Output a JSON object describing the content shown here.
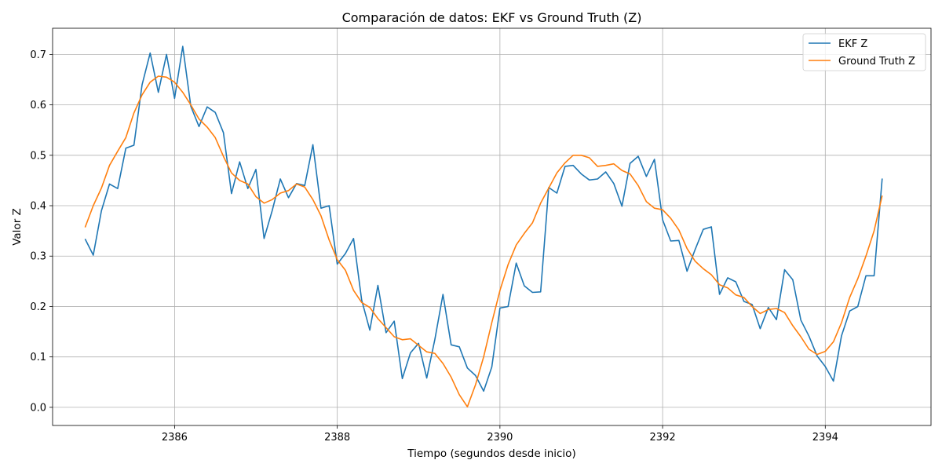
{
  "chart_data": {
    "type": "line",
    "title": "Comparación de datos: EKF vs Ground Truth (Z)",
    "xlabel": "Tiempo (segundos desde inicio)",
    "ylabel": "Valor Z",
    "xlim": [
      2384.5,
      2395.3
    ],
    "ylim": [
      -0.036,
      0.752
    ],
    "xticks": [
      2386,
      2388,
      2390,
      2392,
      2394
    ],
    "yticks": [
      0.0,
      0.1,
      0.2,
      0.3,
      0.4,
      0.5,
      0.6,
      0.7
    ],
    "grid": true,
    "legend_position": "top-right",
    "series": [
      {
        "name": "EKF Z",
        "color": "#1f77b4",
        "x": [
          2384.9,
          2385.0,
          2385.1,
          2385.2,
          2385.3,
          2385.4,
          2385.5,
          2385.6,
          2385.7,
          2385.8,
          2385.9,
          2386.0,
          2386.1,
          2386.2,
          2386.3,
          2386.4,
          2386.5,
          2386.6,
          2386.7,
          2386.8,
          2386.9,
          2387.0,
          2387.1,
          2387.2,
          2387.3,
          2387.4,
          2387.5,
          2387.6,
          2387.7,
          2387.8,
          2387.9,
          2388.0,
          2388.1,
          2388.2,
          2388.3,
          2388.4,
          2388.5,
          2388.6,
          2388.7,
          2388.8,
          2388.9,
          2389.0,
          2389.1,
          2389.2,
          2389.3,
          2389.4,
          2389.5,
          2389.6,
          2389.7,
          2389.8,
          2389.9,
          2390.0,
          2390.1,
          2390.2,
          2390.3,
          2390.4,
          2390.5,
          2390.6,
          2390.7,
          2390.8,
          2390.9,
          2391.0,
          2391.1,
          2391.2,
          2391.3,
          2391.4,
          2391.5,
          2391.6,
          2391.7,
          2391.8,
          2391.9,
          2392.0,
          2392.1,
          2392.2,
          2392.3,
          2392.4,
          2392.5,
          2392.6,
          2392.7,
          2392.8,
          2392.9,
          2393.0,
          2393.1,
          2393.2,
          2393.3,
          2393.4,
          2393.5,
          2393.6,
          2393.7,
          2393.8,
          2393.9,
          2394.0,
          2394.1,
          2394.2,
          2394.3,
          2394.4,
          2394.5,
          2394.6,
          2394.7
        ],
        "y": [
          0.334,
          0.302,
          0.39,
          0.443,
          0.434,
          0.514,
          0.52,
          0.64,
          0.703,
          0.625,
          0.7,
          0.613,
          0.716,
          0.597,
          0.557,
          0.596,
          0.585,
          0.545,
          0.424,
          0.487,
          0.434,
          0.472,
          0.335,
          0.39,
          0.453,
          0.416,
          0.444,
          0.44,
          0.521,
          0.395,
          0.4,
          0.284,
          0.305,
          0.335,
          0.213,
          0.153,
          0.242,
          0.148,
          0.171,
          0.057,
          0.108,
          0.127,
          0.058,
          0.135,
          0.224,
          0.124,
          0.12,
          0.078,
          0.063,
          0.032,
          0.08,
          0.197,
          0.2,
          0.286,
          0.241,
          0.228,
          0.229,
          0.436,
          0.425,
          0.478,
          0.48,
          0.463,
          0.451,
          0.453,
          0.467,
          0.444,
          0.399,
          0.484,
          0.498,
          0.458,
          0.492,
          0.372,
          0.33,
          0.331,
          0.27,
          0.313,
          0.353,
          0.358,
          0.224,
          0.257,
          0.249,
          0.21,
          0.204,
          0.156,
          0.198,
          0.174,
          0.273,
          0.253,
          0.173,
          0.141,
          0.102,
          0.081,
          0.052,
          0.142,
          0.191,
          0.2,
          0.261,
          0.261,
          0.454
        ]
      },
      {
        "name": "Ground Truth Z",
        "color": "#ff7f0e",
        "x": [
          2384.9,
          2385.0,
          2385.1,
          2385.2,
          2385.3,
          2385.4,
          2385.5,
          2385.6,
          2385.7,
          2385.8,
          2385.9,
          2386.0,
          2386.1,
          2386.2,
          2386.3,
          2386.4,
          2386.5,
          2386.6,
          2386.7,
          2386.8,
          2386.9,
          2387.0,
          2387.1,
          2387.2,
          2387.3,
          2387.4,
          2387.5,
          2387.6,
          2387.7,
          2387.8,
          2387.9,
          2388.0,
          2388.1,
          2388.2,
          2388.3,
          2388.4,
          2388.5,
          2388.6,
          2388.7,
          2388.8,
          2388.9,
          2389.0,
          2389.1,
          2389.2,
          2389.3,
          2389.4,
          2389.5,
          2389.6,
          2389.7,
          2389.8,
          2389.9,
          2390.0,
          2390.1,
          2390.2,
          2390.3,
          2390.4,
          2390.5,
          2390.6,
          2390.7,
          2390.8,
          2390.9,
          2391.0,
          2391.1,
          2391.2,
          2391.3,
          2391.4,
          2391.5,
          2391.6,
          2391.7,
          2391.8,
          2391.9,
          2392.0,
          2392.1,
          2392.2,
          2392.3,
          2392.4,
          2392.5,
          2392.6,
          2392.7,
          2392.8,
          2392.9,
          2393.0,
          2393.1,
          2393.2,
          2393.3,
          2393.4,
          2393.5,
          2393.6,
          2393.7,
          2393.8,
          2393.9,
          2394.0,
          2394.1,
          2394.2,
          2394.3,
          2394.4,
          2394.5,
          2394.6,
          2394.7
        ],
        "y": [
          0.357,
          0.4,
          0.435,
          0.48,
          0.508,
          0.535,
          0.584,
          0.62,
          0.645,
          0.657,
          0.655,
          0.645,
          0.625,
          0.6,
          0.572,
          0.556,
          0.535,
          0.498,
          0.465,
          0.45,
          0.443,
          0.418,
          0.405,
          0.412,
          0.425,
          0.43,
          0.443,
          0.437,
          0.412,
          0.38,
          0.332,
          0.293,
          0.272,
          0.232,
          0.208,
          0.198,
          0.176,
          0.158,
          0.14,
          0.134,
          0.136,
          0.123,
          0.11,
          0.107,
          0.087,
          0.06,
          0.025,
          0.001,
          0.045,
          0.1,
          0.168,
          0.232,
          0.283,
          0.322,
          0.345,
          0.366,
          0.405,
          0.435,
          0.465,
          0.485,
          0.5,
          0.5,
          0.495,
          0.478,
          0.48,
          0.483,
          0.47,
          0.463,
          0.44,
          0.408,
          0.395,
          0.392,
          0.375,
          0.352,
          0.315,
          0.29,
          0.275,
          0.263,
          0.243,
          0.237,
          0.223,
          0.218,
          0.2,
          0.186,
          0.194,
          0.196,
          0.188,
          0.162,
          0.14,
          0.115,
          0.105,
          0.111,
          0.13,
          0.168,
          0.218,
          0.255,
          0.3,
          0.35,
          0.42
        ]
      }
    ]
  }
}
